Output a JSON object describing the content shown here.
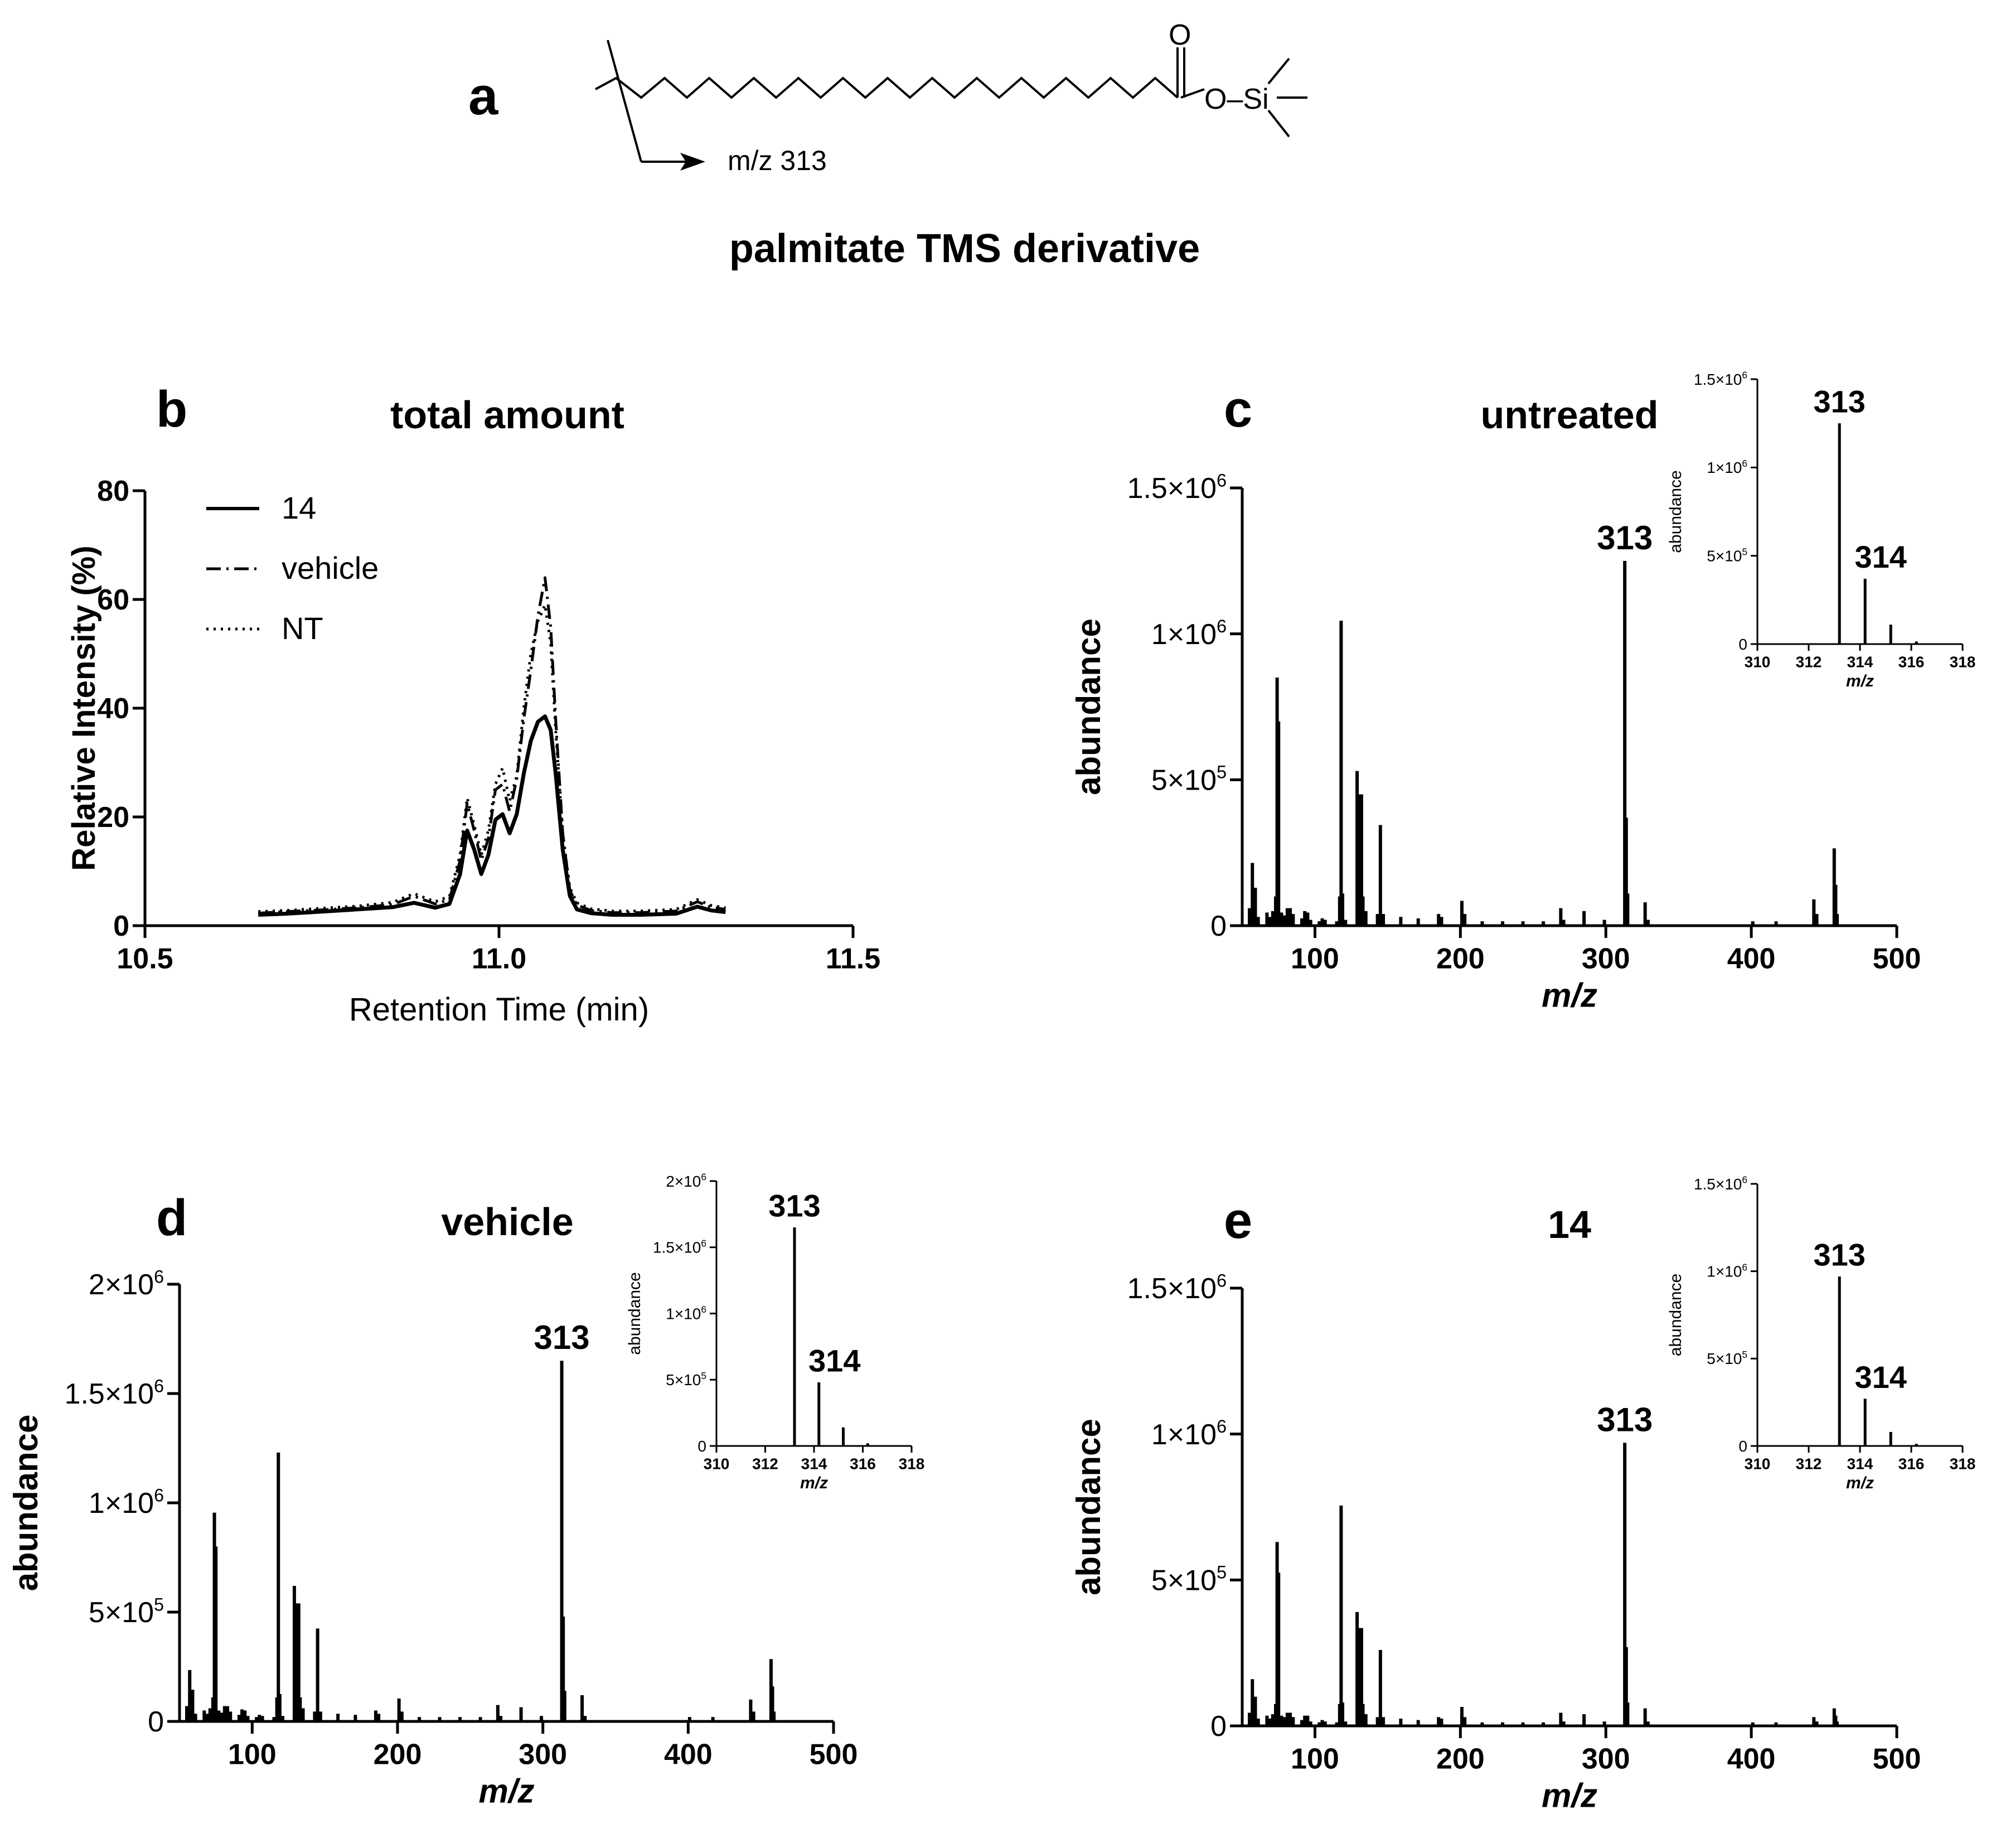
{
  "figure": {
    "panel_a": {
      "letter": "a",
      "fragment_label": "m/z 313",
      "oxygen_label": "O",
      "ester_label": "O–Si",
      "compound_name": "palmitate TMS derivative"
    }
  },
  "chart_data": [
    {
      "id": "b",
      "type": "line",
      "letter": "b",
      "title": "total amount",
      "xlabel": "Retention Time (min)",
      "ylabel": "Relative Intensity (%)",
      "xlim": [
        10.5,
        11.5
      ],
      "ylim": [
        0,
        80
      ],
      "xticks": [
        10.5,
        11.0,
        11.5
      ],
      "xtick_labels": [
        "10.5",
        "11.0",
        "11.5"
      ],
      "yticks": [
        0,
        20,
        40,
        60,
        80
      ],
      "ytick_labels": [
        "0",
        "20",
        "40",
        "60",
        "80"
      ],
      "legend_position": "top-left",
      "series": [
        {
          "name": "14",
          "dash": "solid",
          "x": [
            10.66,
            10.7,
            10.75,
            10.8,
            10.85,
            10.88,
            10.91,
            10.93,
            10.945,
            10.955,
            10.965,
            10.975,
            10.985,
            10.995,
            11.005,
            11.015,
            11.025,
            11.035,
            11.045,
            11.055,
            11.065,
            11.073,
            11.08,
            11.09,
            11.1,
            11.11,
            11.13,
            11.16,
            11.2,
            11.25,
            11.28,
            11.3,
            11.32
          ],
          "y": [
            2.0,
            2.2,
            2.6,
            3.0,
            3.4,
            4.2,
            3.3,
            4.0,
            9.5,
            17.5,
            14.0,
            9.5,
            13.0,
            19.5,
            20.5,
            17.0,
            20.5,
            28.0,
            34.0,
            37.5,
            38.5,
            36.0,
            28.0,
            14.0,
            5.5,
            3.0,
            2.3,
            2.0,
            2.0,
            2.2,
            3.5,
            2.8,
            2.5
          ]
        },
        {
          "name": "vehicle",
          "dash": "dashdot",
          "x": [
            10.66,
            10.7,
            10.75,
            10.8,
            10.85,
            10.88,
            10.91,
            10.93,
            10.945,
            10.955,
            10.965,
            10.975,
            10.985,
            10.995,
            11.005,
            11.015,
            11.025,
            11.035,
            11.045,
            11.055,
            11.065,
            11.073,
            11.08,
            11.09,
            11.1,
            11.11,
            11.13,
            11.16,
            11.2,
            11.25,
            11.28,
            11.3,
            11.32
          ],
          "y": [
            2.3,
            2.6,
            2.9,
            3.3,
            3.9,
            5.4,
            4.0,
            4.8,
            12.0,
            22.5,
            17.5,
            12.0,
            16.0,
            25.0,
            26.0,
            21.0,
            27.0,
            38.0,
            47.0,
            57.0,
            64.0,
            55.0,
            38.0,
            17.0,
            6.5,
            3.8,
            2.8,
            2.4,
            2.4,
            2.7,
            4.4,
            3.4,
            3.0
          ]
        },
        {
          "name": "NT",
          "dash": "dotted",
          "x": [
            10.66,
            10.7,
            10.75,
            10.8,
            10.85,
            10.88,
            10.91,
            10.93,
            10.945,
            10.955,
            10.965,
            10.975,
            10.985,
            10.995,
            11.005,
            11.015,
            11.025,
            11.035,
            11.045,
            11.055,
            11.065,
            11.073,
            11.08,
            11.09,
            11.1,
            11.11,
            11.13,
            11.16,
            11.2,
            11.25,
            11.28,
            11.3,
            11.32
          ],
          "y": [
            2.6,
            2.8,
            3.2,
            3.6,
            4.3,
            5.9,
            4.4,
            5.4,
            13.0,
            23.5,
            18.5,
            13.0,
            17.5,
            26.0,
            29.0,
            23.0,
            27.5,
            40.0,
            50.0,
            56.0,
            59.0,
            52.0,
            36.0,
            17.0,
            7.0,
            4.2,
            3.1,
            2.7,
            2.7,
            3.0,
            4.8,
            3.7,
            3.3
          ]
        }
      ]
    },
    {
      "id": "c",
      "type": "bar",
      "letter": "c",
      "title": "untreated",
      "xlabel": "m/z",
      "ylabel": "abundance",
      "xlim": [
        50,
        500
      ],
      "ylim": [
        0,
        1500000
      ],
      "xticks": [
        100,
        200,
        300,
        400,
        500
      ],
      "xtick_labels": [
        "100",
        "200",
        "300",
        "400",
        "500"
      ],
      "yticks": [
        0,
        500000,
        1000000,
        1500000
      ],
      "ytick_labels": [
        {
          "m": "0",
          "e": ""
        },
        {
          "m": "5×10",
          "e": "5"
        },
        {
          "m": "1×10",
          "e": "6"
        },
        {
          "m": "1.5×10",
          "e": "6"
        }
      ],
      "peak_labels": [
        {
          "x": 313,
          "text": "313"
        }
      ],
      "x": [
        55,
        57,
        59,
        61,
        67,
        69,
        71,
        73,
        74,
        75,
        77,
        79,
        81,
        83,
        85,
        91,
        93,
        95,
        97,
        103,
        105,
        107,
        115,
        117,
        118,
        119,
        121,
        129,
        131,
        132,
        133,
        135,
        143,
        145,
        147,
        159,
        171,
        185,
        187,
        201,
        203,
        215,
        229,
        243,
        257,
        269,
        271,
        285,
        299,
        313,
        314,
        315,
        327,
        329,
        401,
        417,
        443,
        445,
        457,
        458,
        459
      ],
      "values": [
        60000,
        215000,
        130000,
        30000,
        45000,
        30000,
        50000,
        100000,
        850000,
        700000,
        45000,
        35000,
        60000,
        60000,
        40000,
        25000,
        50000,
        45000,
        20000,
        15000,
        25000,
        20000,
        15000,
        100000,
        1045000,
        110000,
        20000,
        530000,
        450000,
        450000,
        100000,
        50000,
        40000,
        345000,
        40000,
        30000,
        25000,
        40000,
        30000,
        85000,
        40000,
        15000,
        15000,
        15000,
        15000,
        60000,
        20000,
        50000,
        20000,
        1250000,
        370000,
        110000,
        80000,
        20000,
        15000,
        15000,
        90000,
        40000,
        265000,
        140000,
        40000
      ],
      "inset": {
        "xlabel": "m/z",
        "ylabel": "abundance",
        "xlim": [
          310,
          318
        ],
        "ylim": [
          0,
          1500000
        ],
        "xticks": [
          310,
          312,
          314,
          316,
          318
        ],
        "xtick_labels": [
          "310",
          "312",
          "314",
          "316",
          "318"
        ],
        "yticks": [
          0,
          500000,
          1000000,
          1500000
        ],
        "ytick_labels": [
          {
            "m": "0",
            "e": ""
          },
          {
            "m": "5×10",
            "e": "5"
          },
          {
            "m": "1×10",
            "e": "6"
          },
          {
            "m": "1.5×10",
            "e": "6"
          }
        ],
        "x": [
          313.2,
          314.2,
          315.2,
          316.2
        ],
        "values": [
          1250000,
          370000,
          110000,
          15000
        ],
        "peak_labels": [
          {
            "x": 313.2,
            "text": "313"
          },
          {
            "x": 314.2,
            "text": "314"
          }
        ]
      }
    },
    {
      "id": "d",
      "type": "bar",
      "letter": "d",
      "title": "vehicle",
      "xlabel": "m/z",
      "ylabel": "abundance",
      "xlim": [
        50,
        500
      ],
      "ylim": [
        0,
        2000000
      ],
      "xticks": [
        100,
        200,
        300,
        400,
        500
      ],
      "xtick_labels": [
        "100",
        "200",
        "300",
        "400",
        "500"
      ],
      "yticks": [
        0,
        500000,
        1000000,
        1500000,
        2000000
      ],
      "ytick_labels": [
        {
          "m": "0",
          "e": ""
        },
        {
          "m": "5×10",
          "e": "5"
        },
        {
          "m": "1×10",
          "e": "6"
        },
        {
          "m": "1.5×10",
          "e": "6"
        },
        {
          "m": "2×10",
          "e": "6"
        }
      ],
      "peak_labels": [
        {
          "x": 313,
          "text": "313"
        }
      ],
      "x": [
        55,
        57,
        59,
        61,
        67,
        69,
        71,
        73,
        74,
        75,
        77,
        79,
        81,
        83,
        85,
        91,
        93,
        95,
        97,
        103,
        105,
        107,
        115,
        117,
        118,
        119,
        121,
        129,
        131,
        132,
        133,
        135,
        143,
        145,
        147,
        159,
        171,
        185,
        187,
        201,
        203,
        215,
        229,
        243,
        257,
        269,
        271,
        285,
        299,
        313,
        314,
        315,
        327,
        329,
        401,
        417,
        443,
        445,
        457,
        458,
        459
      ],
      "values": [
        70000,
        235000,
        145000,
        35000,
        50000,
        35000,
        60000,
        110000,
        955000,
        800000,
        50000,
        40000,
        70000,
        70000,
        45000,
        30000,
        55000,
        50000,
        25000,
        20000,
        30000,
        25000,
        20000,
        110000,
        1230000,
        125000,
        25000,
        620000,
        540000,
        540000,
        110000,
        60000,
        45000,
        425000,
        45000,
        35000,
        30000,
        50000,
        35000,
        105000,
        45000,
        20000,
        20000,
        20000,
        20000,
        75000,
        25000,
        65000,
        25000,
        1650000,
        480000,
        140000,
        120000,
        25000,
        20000,
        20000,
        100000,
        45000,
        285000,
        160000,
        45000
      ],
      "inset": {
        "xlabel": "m/z",
        "ylabel": "abundance",
        "xlim": [
          310,
          318
        ],
        "ylim": [
          0,
          2000000
        ],
        "xticks": [
          310,
          312,
          314,
          316,
          318
        ],
        "xtick_labels": [
          "310",
          "312",
          "314",
          "316",
          "318"
        ],
        "yticks": [
          0,
          500000,
          1000000,
          1500000,
          2000000
        ],
        "ytick_labels": [
          {
            "m": "0",
            "e": ""
          },
          {
            "m": "5×10",
            "e": "5"
          },
          {
            "m": "1×10",
            "e": "6"
          },
          {
            "m": "1.5×10",
            "e": "6"
          },
          {
            "m": "2×10",
            "e": "6"
          }
        ],
        "x": [
          313.2,
          314.2,
          315.2,
          316.2
        ],
        "values": [
          1650000,
          480000,
          140000,
          20000
        ],
        "peak_labels": [
          {
            "x": 313.2,
            "text": "313"
          },
          {
            "x": 314.2,
            "text": "314"
          }
        ]
      }
    },
    {
      "id": "e",
      "type": "bar",
      "letter": "e",
      "title": "14",
      "xlabel": "m/z",
      "ylabel": "abundance",
      "xlim": [
        50,
        500
      ],
      "ylim": [
        0,
        1500000
      ],
      "xticks": [
        100,
        200,
        300,
        400,
        500
      ],
      "xtick_labels": [
        "100",
        "200",
        "300",
        "400",
        "500"
      ],
      "yticks": [
        0,
        500000,
        1000000,
        1500000
      ],
      "ytick_labels": [
        {
          "m": "0",
          "e": ""
        },
        {
          "m": "5×10",
          "e": "5"
        },
        {
          "m": "1×10",
          "e": "6"
        },
        {
          "m": "1.5×10",
          "e": "6"
        }
      ],
      "peak_labels": [
        {
          "x": 313,
          "text": "313"
        }
      ],
      "x": [
        55,
        57,
        59,
        61,
        67,
        69,
        71,
        73,
        74,
        75,
        77,
        79,
        81,
        83,
        85,
        91,
        93,
        95,
        97,
        103,
        105,
        107,
        115,
        117,
        118,
        119,
        121,
        129,
        131,
        132,
        133,
        135,
        143,
        145,
        147,
        159,
        171,
        185,
        187,
        201,
        203,
        215,
        229,
        243,
        257,
        269,
        271,
        285,
        299,
        313,
        314,
        315,
        327,
        329,
        401,
        417,
        443,
        445,
        457,
        458,
        459
      ],
      "values": [
        45000,
        160000,
        100000,
        25000,
        35000,
        25000,
        40000,
        75000,
        630000,
        525000,
        35000,
        30000,
        45000,
        45000,
        30000,
        20000,
        35000,
        35000,
        15000,
        12000,
        20000,
        15000,
        12000,
        75000,
        755000,
        80000,
        15000,
        390000,
        335000,
        335000,
        75000,
        40000,
        30000,
        260000,
        30000,
        25000,
        20000,
        30000,
        25000,
        65000,
        30000,
        12000,
        12000,
        12000,
        12000,
        45000,
        15000,
        40000,
        15000,
        970000,
        270000,
        80000,
        60000,
        15000,
        12000,
        12000,
        30000,
        15000,
        60000,
        35000,
        15000
      ],
      "inset": {
        "xlabel": "m/z",
        "ylabel": "abundance",
        "xlim": [
          310,
          318
        ],
        "ylim": [
          0,
          1500000
        ],
        "xticks": [
          310,
          312,
          314,
          316,
          318
        ],
        "xtick_labels": [
          "310",
          "312",
          "314",
          "316",
          "318"
        ],
        "yticks": [
          0,
          500000,
          1000000,
          1500000
        ],
        "ytick_labels": [
          {
            "m": "0",
            "e": ""
          },
          {
            "m": "5×10",
            "e": "5"
          },
          {
            "m": "1×10",
            "e": "6"
          },
          {
            "m": "1.5×10",
            "e": "6"
          }
        ],
        "x": [
          313.2,
          314.2,
          315.2,
          316.2
        ],
        "values": [
          970000,
          270000,
          80000,
          12000
        ],
        "peak_labels": [
          {
            "x": 313.2,
            "text": "313"
          },
          {
            "x": 314.2,
            "text": "314"
          }
        ]
      }
    }
  ]
}
